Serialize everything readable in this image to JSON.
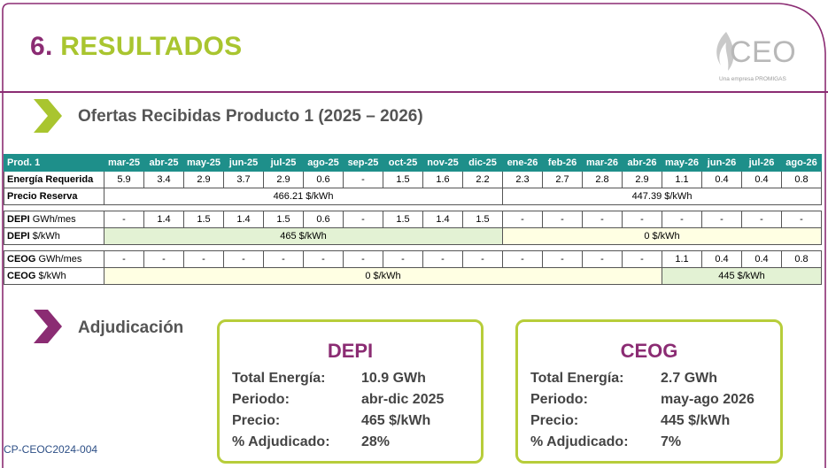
{
  "slide": {
    "number": "6.",
    "title": "RESULTADOS",
    "section_title": "Ofertas Recibidas Producto 1 (2025 – 2026)",
    "section2_title": "Adjudicación",
    "footer": "CP-CEOC2024-004"
  },
  "logo": {
    "text": "CEO",
    "tagline": "Una empresa PROMIGAS"
  },
  "colors": {
    "accent_purple": "#8b2c73",
    "accent_green": "#a9c52f",
    "table_header": "#1e8f8a",
    "box_border": "#b7cd3a"
  },
  "table": {
    "header_label": "Prod. 1",
    "months": [
      "mar-25",
      "abr-25",
      "may-25",
      "jun-25",
      "jul-25",
      "ago-25",
      "sep-25",
      "oct-25",
      "nov-25",
      "dic-25",
      "ene-26",
      "feb-26",
      "mar-26",
      "abr-26",
      "may-26",
      "jun-26",
      "jul-26",
      "ago-26"
    ],
    "energia_label": "Energía Requerida",
    "energia": [
      "5.9",
      "3.4",
      "2.9",
      "3.7",
      "2.9",
      "0.6",
      "-",
      "1.5",
      "1.6",
      "2.2",
      "2.3",
      "2.7",
      "2.8",
      "2.9",
      "1.1",
      "0.4",
      "0.4",
      "0.8"
    ],
    "precio_label": "Precio Reserva",
    "precio_2025": "466.21 $/kWh",
    "precio_2026": "447.39 $/kWh",
    "depi_gwh_bold": "DEPI",
    "depi_gwh_unit": "GWh/mes",
    "depi_gwh": [
      "-",
      "1.4",
      "1.5",
      "1.4",
      "1.5",
      "0.6",
      "-",
      "1.5",
      "1.4",
      "1.5",
      "-",
      "-",
      "-",
      "-",
      "-",
      "-",
      "-",
      "-"
    ],
    "depi_price_bold": "DEPI",
    "depi_price_unit": "$/kWh",
    "depi_price_a": "465 $/kWh",
    "depi_price_b": "0 $/kWh",
    "ceog_gwh_bold": "CEOG",
    "ceog_gwh_unit": "GWh/mes",
    "ceog_gwh": [
      "-",
      "-",
      "-",
      "-",
      "-",
      "-",
      "-",
      "-",
      "-",
      "-",
      "-",
      "-",
      "-",
      "-",
      "1.1",
      "0.4",
      "0.4",
      "0.8"
    ],
    "ceog_price_bold": "CEOG",
    "ceog_price_unit": "$/kWh",
    "ceog_price_a": "0 $/kWh",
    "ceog_price_b": "445 $/kWh"
  },
  "award_boxes": [
    {
      "name": "DEPI",
      "rows": [
        {
          "label": "Total Energía:",
          "value": "10.9 GWh"
        },
        {
          "label": "Periodo:",
          "value": "abr-dic 2025"
        },
        {
          "label": "Precio:",
          "value": "465  $/kWh"
        },
        {
          "label": "% Adjudicado:",
          "value": "28%"
        }
      ]
    },
    {
      "name": "CEOG",
      "rows": [
        {
          "label": "Total Energía:",
          "value": "2.7 GWh"
        },
        {
          "label": "Periodo:",
          "value": "may-ago 2026"
        },
        {
          "label": "Precio:",
          "value": "445  $/kWh"
        },
        {
          "label": "% Adjudicado:",
          "value": "7%"
        }
      ]
    }
  ]
}
